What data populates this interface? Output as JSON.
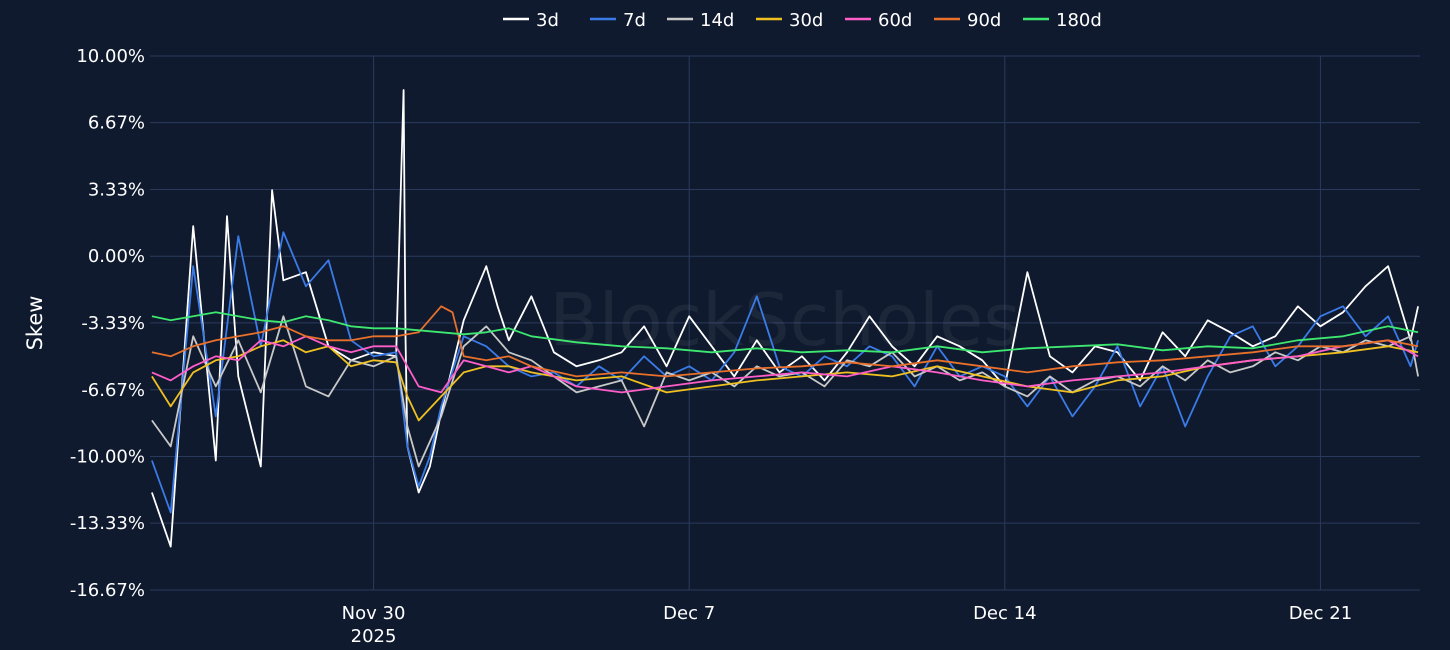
{
  "chart_data": {
    "type": "line",
    "ylabel": "Skew",
    "watermark": "BlockScholes",
    "legend_position": "top-center",
    "grid": true,
    "y_unit": "%",
    "ylim": [
      -16.67,
      10.0
    ],
    "y_ticks": [
      10.0,
      6.67,
      3.33,
      0.0,
      -3.33,
      -6.67,
      -10.0,
      -13.33,
      -16.67
    ],
    "y_tick_labels": [
      "10.00%",
      "6.67%",
      "3.33%",
      "0.00%",
      "-3.33%",
      "-6.67%",
      "-10.00%",
      "-13.33%",
      "-16.67%"
    ],
    "xlim": [
      "2025-11-25T13:00",
      "2025-12-23T17:00"
    ],
    "x_ticks": [
      "2025-11-30T12:00",
      "2025-12-07T12:00",
      "2025-12-14T12:00",
      "2025-12-21T12:00"
    ],
    "x_tick_labels": [
      [
        "Nov 30",
        "2025"
      ],
      [
        "Dec 7"
      ],
      [
        "Dec 14"
      ],
      [
        "Dec 21"
      ]
    ],
    "colors": {
      "background": "#0f1a2e",
      "grid": "#2a3a5c"
    },
    "series": [
      {
        "name": "3d",
        "color": "#ffffff",
        "x": [
          "2025-11-25T14:00",
          "2025-11-26T00:00",
          "2025-11-26T12:00",
          "2025-11-27T00:00",
          "2025-11-27T06:00",
          "2025-11-27T12:00",
          "2025-11-28T00:00",
          "2025-11-28T06:00",
          "2025-11-28T12:00",
          "2025-11-29T00:00",
          "2025-11-29T12:00",
          "2025-11-30T00:00",
          "2025-11-30T12:00",
          "2025-12-01T00:00",
          "2025-12-01T04:00",
          "2025-12-01T05:00",
          "2025-12-01T06:00",
          "2025-12-01T12:00",
          "2025-12-01T18:00",
          "2025-12-02T00:00",
          "2025-12-02T12:00",
          "2025-12-03T00:00",
          "2025-12-03T06:00",
          "2025-12-03T12:00",
          "2025-12-04T00:00",
          "2025-12-04T12:00",
          "2025-12-05T00:00",
          "2025-12-05T12:00",
          "2025-12-06T00:00",
          "2025-12-06T12:00",
          "2025-12-07T00:00",
          "2025-12-07T12:00",
          "2025-12-08T00:00",
          "2025-12-08T12:00",
          "2025-12-09T00:00",
          "2025-12-09T12:00",
          "2025-12-10T00:00",
          "2025-12-10T12:00",
          "2025-12-11T00:00",
          "2025-12-11T12:00",
          "2025-12-12T00:00",
          "2025-12-12T12:00",
          "2025-12-13T00:00",
          "2025-12-13T12:00",
          "2025-12-14T00:00",
          "2025-12-14T12:00",
          "2025-12-15T00:00",
          "2025-12-15T12:00",
          "2025-12-16T00:00",
          "2025-12-16T12:00",
          "2025-12-17T00:00",
          "2025-12-17T12:00",
          "2025-12-18T00:00",
          "2025-12-18T12:00",
          "2025-12-19T00:00",
          "2025-12-19T12:00",
          "2025-12-20T00:00",
          "2025-12-20T12:00",
          "2025-12-21T00:00",
          "2025-12-21T12:00",
          "2025-12-22T00:00",
          "2025-12-22T12:00",
          "2025-12-23T00:00",
          "2025-12-23T12:00",
          "2025-12-23T16:00"
        ],
        "values": [
          -11.8,
          -14.5,
          1.5,
          -10.2,
          2.0,
          -6.0,
          -10.5,
          3.3,
          -1.2,
          -0.8,
          -4.5,
          -5.2,
          -4.8,
          -5.0,
          8.3,
          -4.0,
          -9.5,
          -11.8,
          -10.5,
          -7.8,
          -3.2,
          -0.5,
          -2.5,
          -4.2,
          -2.0,
          -4.8,
          -5.5,
          -5.2,
          -4.8,
          -3.5,
          -5.5,
          -3.0,
          -4.5,
          -6.0,
          -4.2,
          -5.8,
          -5.0,
          -6.2,
          -4.8,
          -3.0,
          -4.5,
          -5.5,
          -4.0,
          -4.5,
          -5.2,
          -6.5,
          -0.8,
          -5.0,
          -5.8,
          -4.5,
          -4.8,
          -6.2,
          -3.8,
          -5.0,
          -3.2,
          -3.8,
          -4.5,
          -4.0,
          -2.5,
          -3.5,
          -2.8,
          -1.5,
          -0.5,
          -4.2,
          -2.5
        ]
      },
      {
        "name": "7d",
        "color": "#3a7be8",
        "x": [
          "2025-11-25T14:00",
          "2025-11-26T00:00",
          "2025-11-26T12:00",
          "2025-11-27T00:00",
          "2025-11-27T12:00",
          "2025-11-28T00:00",
          "2025-11-28T12:00",
          "2025-11-29T00:00",
          "2025-11-29T12:00",
          "2025-11-30T00:00",
          "2025-11-30T12:00",
          "2025-12-01T00:00",
          "2025-12-01T06:00",
          "2025-12-01T12:00",
          "2025-12-01T18:00",
          "2025-12-02T00:00",
          "2025-12-02T12:00",
          "2025-12-03T00:00",
          "2025-12-03T12:00",
          "2025-12-04T00:00",
          "2025-12-04T12:00",
          "2025-12-05T00:00",
          "2025-12-05T12:00",
          "2025-12-06T00:00",
          "2025-12-06T12:00",
          "2025-12-07T00:00",
          "2025-12-07T12:00",
          "2025-12-08T00:00",
          "2025-12-08T12:00",
          "2025-12-09T00:00",
          "2025-12-09T12:00",
          "2025-12-10T00:00",
          "2025-12-10T12:00",
          "2025-12-11T00:00",
          "2025-12-11T12:00",
          "2025-12-12T00:00",
          "2025-12-12T12:00",
          "2025-12-13T00:00",
          "2025-12-13T12:00",
          "2025-12-14T00:00",
          "2025-12-14T12:00",
          "2025-12-15T00:00",
          "2025-12-15T12:00",
          "2025-12-16T00:00",
          "2025-12-16T12:00",
          "2025-12-17T00:00",
          "2025-12-17T12:00",
          "2025-12-18T00:00",
          "2025-12-18T12:00",
          "2025-12-19T00:00",
          "2025-12-19T12:00",
          "2025-12-20T00:00",
          "2025-12-20T12:00",
          "2025-12-21T00:00",
          "2025-12-21T12:00",
          "2025-12-22T00:00",
          "2025-12-22T12:00",
          "2025-12-23T00:00",
          "2025-12-23T12:00",
          "2025-12-23T16:00"
        ],
        "values": [
          -10.2,
          -12.8,
          -0.5,
          -8.0,
          1.0,
          -4.5,
          1.2,
          -1.5,
          -0.2,
          -4.2,
          -5.0,
          -4.8,
          -9.5,
          -11.5,
          -10.0,
          -7.5,
          -4.0,
          -4.5,
          -5.5,
          -6.0,
          -5.8,
          -6.5,
          -5.5,
          -6.2,
          -5.0,
          -6.0,
          -5.5,
          -6.2,
          -4.8,
          -2.0,
          -5.5,
          -6.0,
          -5.0,
          -5.5,
          -4.5,
          -5.0,
          -6.5,
          -4.5,
          -6.0,
          -5.5,
          -6.0,
          -7.5,
          -6.0,
          -8.0,
          -6.5,
          -4.5,
          -7.5,
          -5.5,
          -8.5,
          -6.0,
          -4.0,
          -3.5,
          -5.5,
          -4.5,
          -3.0,
          -2.5,
          -4.0,
          -3.0,
          -5.5,
          -4.2
        ]
      },
      {
        "name": "14d",
        "color": "#c8c8c8",
        "x": [
          "2025-11-25T14:00",
          "2025-11-26T00:00",
          "2025-11-26T12:00",
          "2025-11-27T00:00",
          "2025-11-27T12:00",
          "2025-11-28T00:00",
          "2025-11-28T12:00",
          "2025-11-29T00:00",
          "2025-11-29T12:00",
          "2025-11-30T00:00",
          "2025-11-30T12:00",
          "2025-12-01T00:00",
          "2025-12-01T06:00",
          "2025-12-01T12:00",
          "2025-12-02T00:00",
          "2025-12-02T12:00",
          "2025-12-03T00:00",
          "2025-12-03T12:00",
          "2025-12-04T00:00",
          "2025-12-04T12:00",
          "2025-12-05T00:00",
          "2025-12-05T12:00",
          "2025-12-06T00:00",
          "2025-12-06T12:00",
          "2025-12-07T00:00",
          "2025-12-07T12:00",
          "2025-12-08T00:00",
          "2025-12-08T12:00",
          "2025-12-09T00:00",
          "2025-12-09T12:00",
          "2025-12-10T00:00",
          "2025-12-10T12:00",
          "2025-12-11T00:00",
          "2025-12-11T12:00",
          "2025-12-12T00:00",
          "2025-12-12T12:00",
          "2025-12-13T00:00",
          "2025-12-13T12:00",
          "2025-12-14T00:00",
          "2025-12-14T12:00",
          "2025-12-15T00:00",
          "2025-12-15T12:00",
          "2025-12-16T00:00",
          "2025-12-16T12:00",
          "2025-12-17T00:00",
          "2025-12-17T12:00",
          "2025-12-18T00:00",
          "2025-12-18T12:00",
          "2025-12-19T00:00",
          "2025-12-19T12:00",
          "2025-12-20T00:00",
          "2025-12-20T12:00",
          "2025-12-21T00:00",
          "2025-12-21T12:00",
          "2025-12-22T00:00",
          "2025-12-22T12:00",
          "2025-12-23T00:00",
          "2025-12-23T12:00",
          "2025-12-23T16:00"
        ],
        "values": [
          -8.2,
          -9.5,
          -4.0,
          -6.5,
          -4.2,
          -6.8,
          -3.0,
          -6.5,
          -7.0,
          -5.2,
          -5.5,
          -5.0,
          -8.5,
          -10.5,
          -8.0,
          -4.5,
          -3.5,
          -4.8,
          -5.2,
          -6.0,
          -6.8,
          -6.5,
          -6.2,
          -8.5,
          -5.8,
          -6.2,
          -5.8,
          -6.5,
          -5.5,
          -6.0,
          -5.8,
          -6.5,
          -5.2,
          -5.5,
          -4.8,
          -6.0,
          -5.5,
          -6.2,
          -5.8,
          -6.5,
          -7.0,
          -6.0,
          -6.8,
          -6.2,
          -6.0,
          -6.5,
          -5.5,
          -6.2,
          -5.2,
          -5.8,
          -5.5,
          -4.8,
          -5.2,
          -4.5,
          -4.8,
          -4.2,
          -4.5,
          -4.0,
          -6.0
        ]
      },
      {
        "name": "30d",
        "color": "#f0c020",
        "x": [
          "2025-11-25T14:00",
          "2025-11-26T00:00",
          "2025-11-26T12:00",
          "2025-11-27T00:00",
          "2025-11-27T12:00",
          "2025-11-28T00:00",
          "2025-11-28T12:00",
          "2025-11-29T00:00",
          "2025-11-29T12:00",
          "2025-11-30T00:00",
          "2025-11-30T12:00",
          "2025-12-01T00:00",
          "2025-12-01T06:00",
          "2025-12-01T12:00",
          "2025-12-02T00:00",
          "2025-12-02T12:00",
          "2025-12-03T00:00",
          "2025-12-03T12:00",
          "2025-12-04T00:00",
          "2025-12-05T00:00",
          "2025-12-06T00:00",
          "2025-12-07T00:00",
          "2025-12-08T00:00",
          "2025-12-09T00:00",
          "2025-12-10T00:00",
          "2025-12-11T00:00",
          "2025-12-12T00:00",
          "2025-12-13T00:00",
          "2025-12-14T00:00",
          "2025-12-15T00:00",
          "2025-12-16T00:00",
          "2025-12-17T00:00",
          "2025-12-18T00:00",
          "2025-12-19T00:00",
          "2025-12-20T00:00",
          "2025-12-21T00:00",
          "2025-12-22T00:00",
          "2025-12-23T00:00",
          "2025-12-23T16:00"
        ],
        "values": [
          -6.0,
          -7.5,
          -5.8,
          -5.2,
          -5.0,
          -4.5,
          -4.2,
          -4.8,
          -4.5,
          -5.5,
          -5.2,
          -5.3,
          -7.0,
          -8.2,
          -7.0,
          -5.8,
          -5.5,
          -5.5,
          -5.8,
          -6.2,
          -6.0,
          -6.8,
          -6.5,
          -6.2,
          -6.0,
          -5.8,
          -6.0,
          -5.5,
          -6.0,
          -6.5,
          -6.8,
          -6.2,
          -6.0,
          -5.5,
          -5.2,
          -5.0,
          -4.8,
          -4.5,
          -4.8
        ]
      },
      {
        "name": "60d",
        "color": "#ff5ec8",
        "x": [
          "2025-11-25T14:00",
          "2025-11-26T00:00",
          "2025-11-26T12:00",
          "2025-11-27T00:00",
          "2025-11-27T12:00",
          "2025-11-28T00:00",
          "2025-11-28T12:00",
          "2025-11-29T00:00",
          "2025-11-29T12:00",
          "2025-11-30T00:00",
          "2025-11-30T12:00",
          "2025-12-01T00:00",
          "2025-12-01T12:00",
          "2025-12-02T00:00",
          "2025-12-02T12:00",
          "2025-12-03T00:00",
          "2025-12-03T12:00",
          "2025-12-04T00:00",
          "2025-12-05T00:00",
          "2025-12-06T00:00",
          "2025-12-07T00:00",
          "2025-12-08T00:00",
          "2025-12-09T00:00",
          "2025-12-10T00:00",
          "2025-12-11T00:00",
          "2025-12-12T00:00",
          "2025-12-13T00:00",
          "2025-12-14T00:00",
          "2025-12-15T00:00",
          "2025-12-16T00:00",
          "2025-12-17T00:00",
          "2025-12-18T00:00",
          "2025-12-19T00:00",
          "2025-12-20T00:00",
          "2025-12-21T00:00",
          "2025-12-22T00:00",
          "2025-12-23T00:00",
          "2025-12-23T16:00"
        ],
        "values": [
          -5.8,
          -6.2,
          -5.5,
          -5.0,
          -5.2,
          -4.2,
          -4.5,
          -4.0,
          -4.5,
          -4.8,
          -4.5,
          -4.5,
          -6.5,
          -6.8,
          -5.2,
          -5.5,
          -5.8,
          -5.5,
          -6.5,
          -6.8,
          -6.5,
          -6.2,
          -6.0,
          -5.8,
          -6.0,
          -5.5,
          -5.8,
          -6.2,
          -6.5,
          -6.2,
          -6.0,
          -5.8,
          -5.5,
          -5.2,
          -5.0,
          -4.5,
          -4.2,
          -5.0
        ]
      },
      {
        "name": "90d",
        "color": "#e8702a",
        "x": [
          "2025-11-25T14:00",
          "2025-11-26T00:00",
          "2025-11-26T12:00",
          "2025-11-27T00:00",
          "2025-11-27T12:00",
          "2025-11-28T00:00",
          "2025-11-28T12:00",
          "2025-11-29T00:00",
          "2025-11-29T12:00",
          "2025-11-30T00:00",
          "2025-11-30T12:00",
          "2025-12-01T00:00",
          "2025-12-01T12:00",
          "2025-12-02T00:00",
          "2025-12-02T06:00",
          "2025-12-02T12:00",
          "2025-12-03T00:00",
          "2025-12-03T12:00",
          "2025-12-04T00:00",
          "2025-12-05T00:00",
          "2025-12-06T00:00",
          "2025-12-07T00:00",
          "2025-12-08T00:00",
          "2025-12-09T00:00",
          "2025-12-10T00:00",
          "2025-12-11T00:00",
          "2025-12-12T00:00",
          "2025-12-13T00:00",
          "2025-12-14T00:00",
          "2025-12-15T00:00",
          "2025-12-16T00:00",
          "2025-12-17T00:00",
          "2025-12-18T00:00",
          "2025-12-19T00:00",
          "2025-12-20T00:00",
          "2025-12-21T00:00",
          "2025-12-22T00:00",
          "2025-12-23T00:00",
          "2025-12-23T16:00"
        ],
        "values": [
          -4.8,
          -5.0,
          -4.5,
          -4.2,
          -4.0,
          -3.8,
          -3.5,
          -4.0,
          -4.2,
          -4.2,
          -4.0,
          -4.0,
          -3.8,
          -2.5,
          -2.8,
          -5.0,
          -5.2,
          -5.0,
          -5.5,
          -6.0,
          -5.8,
          -6.0,
          -5.8,
          -5.6,
          -5.5,
          -5.3,
          -5.5,
          -5.2,
          -5.5,
          -5.8,
          -5.5,
          -5.3,
          -5.2,
          -5.0,
          -4.8,
          -4.5,
          -4.5,
          -4.2,
          -4.5
        ]
      },
      {
        "name": "180d",
        "color": "#3ee870",
        "x": [
          "2025-11-25T14:00",
          "2025-11-26T00:00",
          "2025-11-26T12:00",
          "2025-11-27T00:00",
          "2025-11-27T12:00",
          "2025-11-28T00:00",
          "2025-11-28T12:00",
          "2025-11-29T00:00",
          "2025-11-29T12:00",
          "2025-11-30T00:00",
          "2025-11-30T12:00",
          "2025-12-01T00:00",
          "2025-12-01T12:00",
          "2025-12-02T00:00",
          "2025-12-02T12:00",
          "2025-12-03T00:00",
          "2025-12-03T12:00",
          "2025-12-04T00:00",
          "2025-12-05T00:00",
          "2025-12-06T00:00",
          "2025-12-07T00:00",
          "2025-12-08T00:00",
          "2025-12-09T00:00",
          "2025-12-10T00:00",
          "2025-12-11T00:00",
          "2025-12-12T00:00",
          "2025-12-13T00:00",
          "2025-12-14T00:00",
          "2025-12-15T00:00",
          "2025-12-16T00:00",
          "2025-12-17T00:00",
          "2025-12-18T00:00",
          "2025-12-19T00:00",
          "2025-12-20T00:00",
          "2025-12-21T00:00",
          "2025-12-22T00:00",
          "2025-12-23T00:00",
          "2025-12-23T16:00"
        ],
        "values": [
          -3.0,
          -3.2,
          -3.0,
          -2.8,
          -3.0,
          -3.2,
          -3.3,
          -3.0,
          -3.2,
          -3.5,
          -3.6,
          -3.6,
          -3.7,
          -3.8,
          -3.9,
          -3.8,
          -3.6,
          -4.0,
          -4.3,
          -4.5,
          -4.6,
          -4.8,
          -4.6,
          -4.8,
          -4.7,
          -4.8,
          -4.5,
          -4.8,
          -4.6,
          -4.5,
          -4.4,
          -4.7,
          -4.5,
          -4.6,
          -4.2,
          -4.0,
          -3.5,
          -3.8
        ]
      }
    ]
  }
}
